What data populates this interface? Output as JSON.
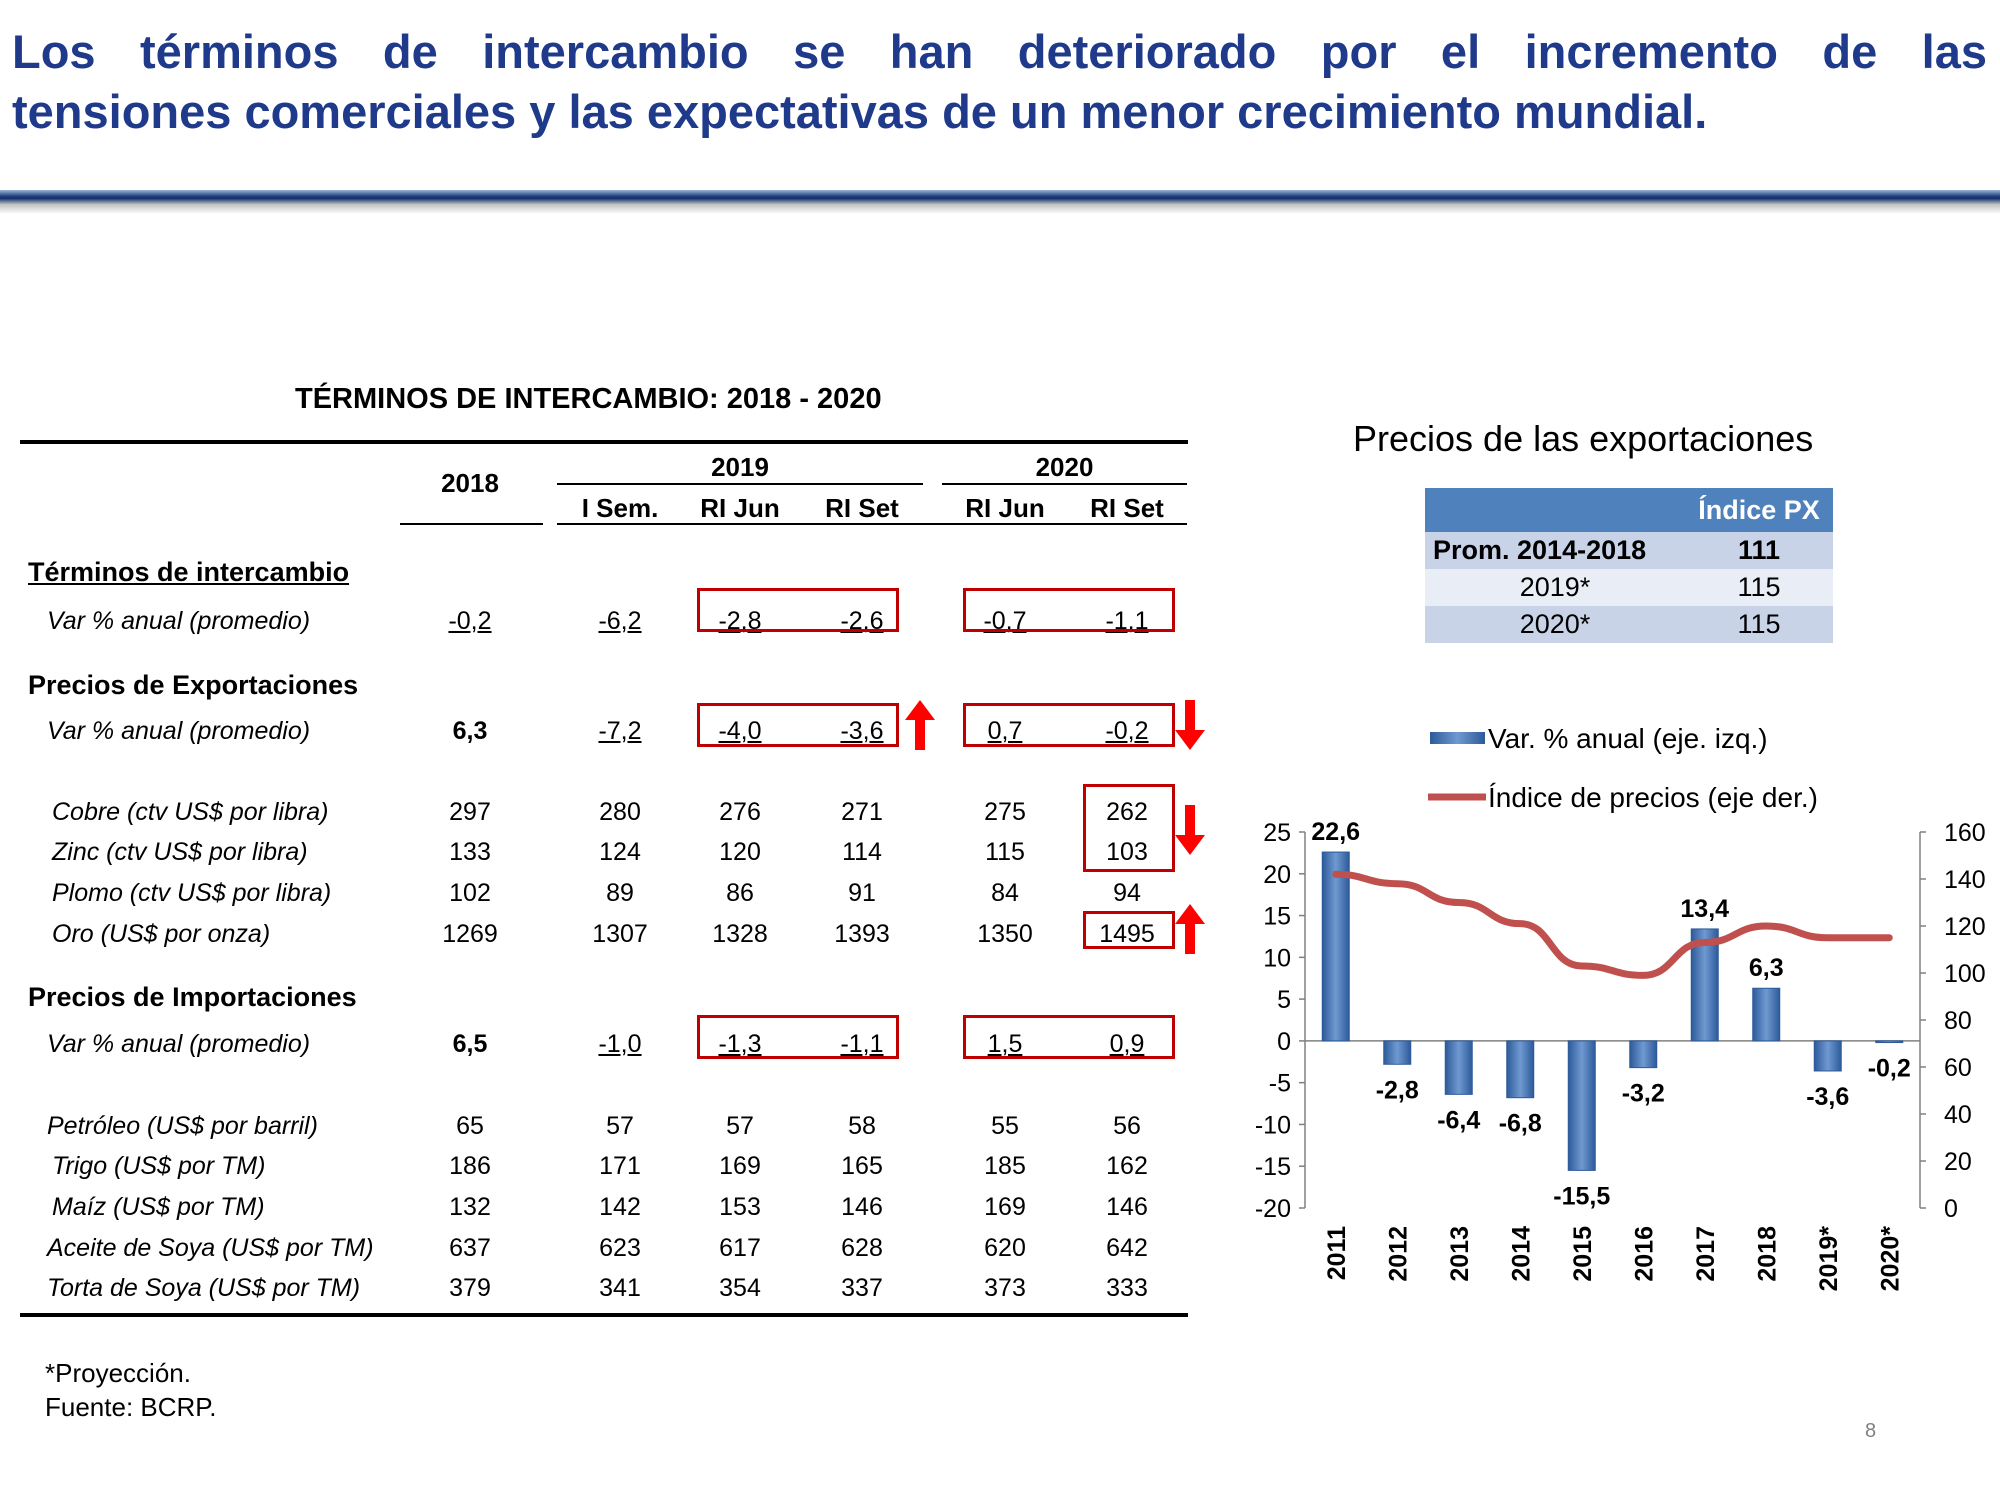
{
  "headline": {
    "line1": "Los términos de intercambio se han deteriorado por el incremento de las",
    "line2": "tensiones comerciales y las expectativas de un menor crecimiento mundial."
  },
  "table": {
    "title": "TÉRMINOS DE INTERCAMBIO: 2018 - 2020",
    "headers": {
      "y2018": "2018",
      "y2019": "2019",
      "y2020": "2020",
      "sub": [
        "I Sem.",
        "RI Jun",
        "RI Set",
        "RI Jun",
        "RI Set"
      ]
    },
    "sections": {
      "ti": "Términos de intercambio",
      "px": "Precios de Exportaciones",
      "pm": "Precios de Importaciones"
    },
    "rows": [
      {
        "label": "Var % anual (promedio)",
        "values": [
          "-0,2",
          "-6,2",
          "-2,8",
          "-2,6",
          "-0,7",
          "-1,1"
        ]
      },
      {
        "label": "Var % anual (promedio)",
        "values": [
          "6,3",
          "-7,2",
          "-4,0",
          "-3,6",
          "0,7",
          "-0,2"
        ]
      },
      {
        "label": "Cobre (ctv US$ por libra)",
        "values": [
          "297",
          "280",
          "276",
          "271",
          "275",
          "262"
        ]
      },
      {
        "label": "Zinc (ctv US$ por libra)",
        "values": [
          "133",
          "124",
          "120",
          "114",
          "115",
          "103"
        ]
      },
      {
        "label": "Plomo (ctv US$ por libra)",
        "values": [
          "102",
          "89",
          "86",
          "91",
          "84",
          "94"
        ]
      },
      {
        "label": "Oro (US$ por onza)",
        "values": [
          "1269",
          "1307",
          "1328",
          "1393",
          "1350",
          "1495"
        ]
      },
      {
        "label": "Var % anual (promedio)",
        "values": [
          "6,5",
          "-1,0",
          "-1,3",
          "-1,1",
          "1,5",
          "0,9"
        ]
      },
      {
        "label": "Petróleo (US$ por barril)",
        "values": [
          "65",
          "57",
          "57",
          "58",
          "55",
          "56"
        ]
      },
      {
        "label": "Trigo (US$ por TM)",
        "values": [
          "186",
          "171",
          "169",
          "165",
          "185",
          "162"
        ]
      },
      {
        "label": "Maíz (US$ por TM)",
        "values": [
          "132",
          "142",
          "153",
          "146",
          "169",
          "146"
        ]
      },
      {
        "label": "Aceite de Soya (US$ por TM)",
        "values": [
          "637",
          "623",
          "617",
          "628",
          "620",
          "642"
        ]
      },
      {
        "label": "Torta de Soya (US$ por TM)",
        "values": [
          "379",
          "341",
          "354",
          "337",
          "373",
          "333"
        ]
      }
    ]
  },
  "footnotes": {
    "proj": "*Proyección.",
    "source": "Fuente: BCRP."
  },
  "page_number": "8",
  "colors": {
    "headline": "#1f3a8a",
    "redbox": "#c00000",
    "arrow": "#ff0000",
    "bar": "#4f81bd",
    "line": "#c0504d"
  },
  "chart_data": {
    "type": "bar",
    "title": "Precios de las exportaciones",
    "index_table": {
      "header": "Índice PX",
      "rows": [
        {
          "label": "Prom. 2014-2018",
          "value": "111"
        },
        {
          "label": "2019*",
          "value": "115"
        },
        {
          "label": "2020*",
          "value": "115"
        }
      ]
    },
    "categories": [
      "2011",
      "2012",
      "2013",
      "2014",
      "2015",
      "2016",
      "2017",
      "2018",
      "2019*",
      "2020*"
    ],
    "series": [
      {
        "name": "Var. % anual (eje. izq.)",
        "type": "bar",
        "axis": "left",
        "values": [
          22.6,
          -2.8,
          -6.4,
          -6.8,
          -15.5,
          -3.2,
          13.4,
          6.3,
          -3.6,
          -0.2
        ],
        "labels": [
          "22,6",
          "-2,8",
          "-6,4",
          "-6,8",
          "-15,5",
          "-3,2",
          "13,4",
          "6,3",
          "-3,6",
          "-0,2"
        ]
      },
      {
        "name": "Índice de precios (eje der.)",
        "type": "line",
        "axis": "right",
        "values": [
          142,
          138,
          130,
          121,
          103,
          99,
          113,
          120,
          115,
          115
        ]
      }
    ],
    "left_axis": {
      "range": [
        -20,
        25
      ],
      "ticks": [
        "25",
        "20",
        "15",
        "10",
        "5",
        "0",
        "-5",
        "-10",
        "-15",
        "-20"
      ]
    },
    "right_axis": {
      "range": [
        0,
        160
      ],
      "ticks": [
        "160",
        "140",
        "120",
        "100",
        "80",
        "60",
        "40",
        "20",
        "0"
      ]
    },
    "legend_position": "top"
  }
}
